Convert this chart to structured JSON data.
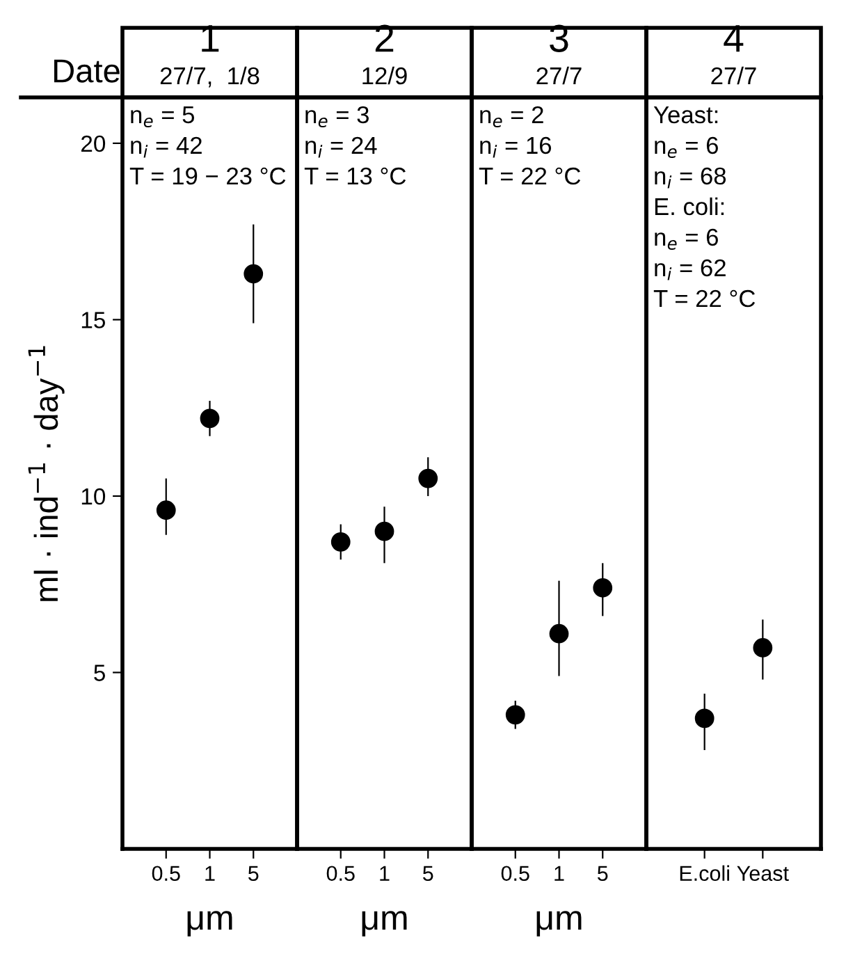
{
  "chart_data": [
    {
      "type": "scatter",
      "title": "1",
      "subtitle": "27/7,  1/8",
      "ylabel": "ml · ind$^{−1}$ · day$^{−1}$",
      "xlabel": "μm",
      "categories": [
        "0.5",
        "1",
        "5"
      ],
      "values": [
        9.6,
        12.2,
        16.3
      ],
      "errors": [
        [
          8.9,
          10.5
        ],
        [
          11.7,
          12.7
        ],
        [
          14.9,
          17.7
        ]
      ],
      "color": "#000000",
      "marker": "circle",
      "ylim": [
        0,
        21.3
      ],
      "yticks": [
        5,
        10,
        15,
        20
      ],
      "annotations": [
        "Date",
        "n$_{e}$ = 5",
        "n$_{i}$ = 42",
        "T = 19 − 23 °C"
      ]
    },
    {
      "type": "scatter",
      "title": "2",
      "subtitle": "12/9",
      "xlabel": "μm",
      "categories": [
        "0.5",
        "1",
        "5"
      ],
      "values": [
        8.7,
        9.0,
        10.5
      ],
      "errors": [
        [
          8.2,
          9.2
        ],
        [
          8.1,
          9.7
        ],
        [
          10.0,
          11.1
        ]
      ],
      "color": "#000000",
      "marker": "circle",
      "ylim": [
        0,
        21.3
      ],
      "tick_labels": "x",
      "annotations": [
        "n$_{e}$ = 3",
        "n$_{i}$ = 24",
        "T = 13 °C"
      ]
    },
    {
      "type": "scatter",
      "title": "3",
      "subtitle": "27/7",
      "xlabel": "μm",
      "categories": [
        "0.5",
        "1",
        "5"
      ],
      "values": [
        3.8,
        6.1,
        7.4
      ],
      "errors": [
        [
          3.4,
          4.2
        ],
        [
          4.9,
          7.6
        ],
        [
          6.6,
          8.1
        ]
      ],
      "color": "#000000",
      "marker": "circle",
      "ylim": [
        0,
        21.3
      ],
      "tick_labels": "x",
      "annotations": [
        "n$_{e}$ = 2",
        "n$_{i}$ = 16",
        "T = 22 °C"
      ]
    },
    {
      "type": "scatter",
      "title": "4",
      "subtitle": "27/7",
      "categories": [
        "E.coli",
        "Yeast"
      ],
      "values": [
        3.7,
        5.7
      ],
      "errors": [
        [
          2.8,
          4.4
        ],
        [
          4.8,
          6.5
        ]
      ],
      "color": "#000000",
      "marker": "circle",
      "ylim": [
        0,
        21.3
      ],
      "tick_labels": "x",
      "annotations": [
        "Yeast:",
        "n$_{e}$ = 6",
        "n$_{i}$ = 68",
        "E. coli:",
        "n$_{e}$ = 6",
        "n$_{i}$ = 62",
        "T = 22 °C"
      ]
    }
  ]
}
